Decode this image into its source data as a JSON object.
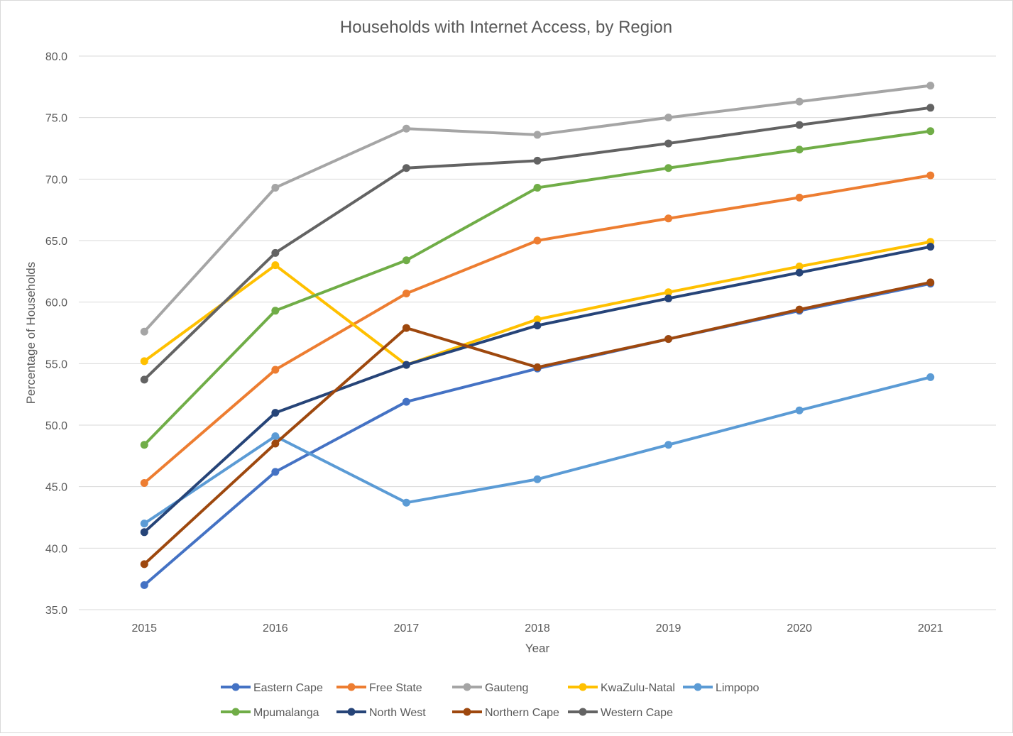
{
  "chart_data": {
    "type": "line",
    "title": "Households  with Internet Access, by Region",
    "xlabel": "Year",
    "ylabel": "Percentage of Households",
    "x": [
      "2015",
      "2016",
      "2017",
      "2018",
      "2019",
      "2020",
      "2021"
    ],
    "ylim": [
      35.0,
      80.0
    ],
    "yticks": [
      "35.0",
      "40.0",
      "45.0",
      "50.0",
      "55.0",
      "60.0",
      "65.0",
      "70.0",
      "75.0",
      "80.0"
    ],
    "grid": true,
    "legend_position": "bottom",
    "series": [
      {
        "name": "Eastern Cape",
        "color": "#4472c4",
        "values": [
          37.0,
          46.2,
          51.9,
          54.6,
          57.0,
          59.3,
          61.5
        ]
      },
      {
        "name": "Free State",
        "color": "#ed7d31",
        "values": [
          45.3,
          54.5,
          60.7,
          65.0,
          66.8,
          68.5,
          70.3
        ]
      },
      {
        "name": "Gauteng",
        "color": "#a5a5a5",
        "values": [
          57.6,
          69.3,
          74.1,
          73.6,
          75.0,
          76.3,
          77.6
        ]
      },
      {
        "name": "KwaZulu-Natal",
        "color": "#ffc000",
        "values": [
          55.2,
          63.0,
          54.9,
          58.6,
          60.8,
          62.9,
          64.9
        ]
      },
      {
        "name": "Limpopo",
        "color": "#5b9bd5",
        "values": [
          42.0,
          49.1,
          43.7,
          45.6,
          48.4,
          51.2,
          53.9
        ]
      },
      {
        "name": "Mpumalanga",
        "color": "#70ad47",
        "values": [
          48.4,
          59.3,
          63.4,
          69.3,
          70.9,
          72.4,
          73.9
        ]
      },
      {
        "name": "North West",
        "color": "#264478",
        "values": [
          41.3,
          51.0,
          54.9,
          58.1,
          60.3,
          62.4,
          64.5
        ]
      },
      {
        "name": "Northern Cape",
        "color": "#9e480e",
        "values": [
          38.7,
          48.5,
          57.9,
          54.7,
          57.0,
          59.4,
          61.6
        ]
      },
      {
        "name": "Western Cape",
        "color": "#636363",
        "values": [
          53.7,
          64.0,
          70.9,
          71.5,
          72.9,
          74.4,
          75.8
        ]
      }
    ]
  }
}
